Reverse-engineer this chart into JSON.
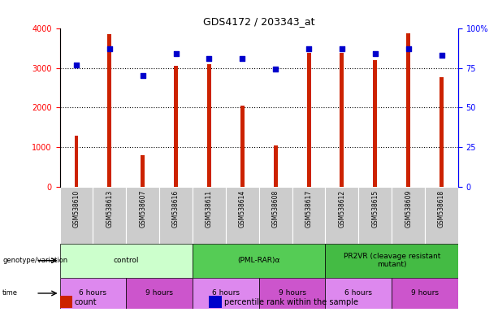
{
  "title": "GDS4172 / 203343_at",
  "samples": [
    "GSM538610",
    "GSM538613",
    "GSM538607",
    "GSM538616",
    "GSM538611",
    "GSM538614",
    "GSM538608",
    "GSM538617",
    "GSM538612",
    "GSM538615",
    "GSM538609",
    "GSM538618"
  ],
  "counts": [
    1300,
    3850,
    800,
    3050,
    3100,
    2060,
    1050,
    3380,
    3380,
    3200,
    3860,
    2760
  ],
  "percentiles": [
    77,
    87,
    70,
    84,
    81,
    81,
    74,
    87,
    87,
    84,
    87,
    83
  ],
  "ylim_left": [
    0,
    4000
  ],
  "ylim_right": [
    0,
    100
  ],
  "yticks_left": [
    0,
    1000,
    2000,
    3000,
    4000
  ],
  "yticks_right": [
    0,
    25,
    50,
    75,
    100
  ],
  "ytick_labels_right": [
    "0",
    "25",
    "50",
    "75",
    "100%"
  ],
  "bar_color": "#cc2200",
  "dot_color": "#0000cc",
  "bg_color": "#ffffff",
  "sample_box_color": "#cccccc",
  "groups": [
    {
      "label": "control",
      "start": 0,
      "end": 3,
      "color": "#ccffcc"
    },
    {
      "label": "(PML-RAR)α",
      "start": 4,
      "end": 7,
      "color": "#55cc55"
    },
    {
      "label": "PR2VR (cleavage resistant\nmutant)",
      "start": 8,
      "end": 11,
      "color": "#44bb44"
    }
  ],
  "time_groups": [
    {
      "label": "6 hours",
      "start": 0,
      "end": 1,
      "color": "#dd88ee"
    },
    {
      "label": "9 hours",
      "start": 2,
      "end": 3,
      "color": "#cc55cc"
    },
    {
      "label": "6 hours",
      "start": 4,
      "end": 5,
      "color": "#dd88ee"
    },
    {
      "label": "9 hours",
      "start": 6,
      "end": 7,
      "color": "#cc55cc"
    },
    {
      "label": "6 hours",
      "start": 8,
      "end": 9,
      "color": "#dd88ee"
    },
    {
      "label": "9 hours",
      "start": 10,
      "end": 11,
      "color": "#cc55cc"
    }
  ],
  "legend_items": [
    {
      "label": "count",
      "color": "#cc2200"
    },
    {
      "label": "percentile rank within the sample",
      "color": "#0000cc"
    }
  ],
  "left_labels": [
    {
      "text": "genotype/variation",
      "row": "geno"
    },
    {
      "text": "time",
      "row": "time"
    }
  ]
}
